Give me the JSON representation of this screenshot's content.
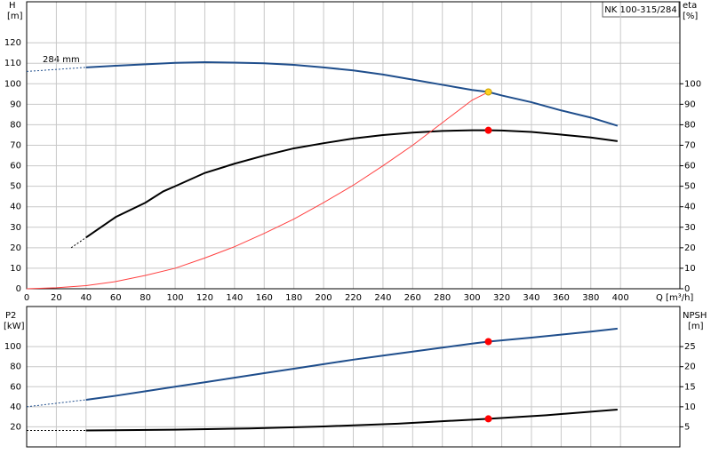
{
  "chart_data": [
    {
      "type": "line",
      "title": "NK 100-315/284",
      "xlabel": "Q [m³/h]",
      "ylabel": [
        "H",
        "[m]"
      ],
      "y2label": [
        "eta",
        "[%]"
      ],
      "annotation": "284 mm",
      "xlim": [
        0,
        440
      ],
      "xticks": [
        0,
        20,
        40,
        60,
        80,
        100,
        120,
        140,
        160,
        180,
        200,
        220,
        240,
        260,
        280,
        300,
        320,
        340,
        360,
        380,
        400
      ],
      "ylim": [
        0,
        140
      ],
      "yticks": [
        0,
        10,
        20,
        30,
        40,
        50,
        60,
        70,
        80,
        90,
        100,
        110,
        120
      ],
      "y2lim": [
        0,
        140
      ],
      "y2ticks": [
        0,
        10,
        20,
        30,
        40,
        50,
        60,
        70,
        80,
        90,
        100
      ],
      "grid": true,
      "series": [
        {
          "color": "#1f4e8c",
          "style": "dashed",
          "x": [
            0,
            40
          ],
          "values": [
            106,
            108
          ]
        },
        {
          "color": "#1f4e8c",
          "style": "solid",
          "x": [
            40,
            60,
            80,
            100,
            120,
            140,
            160,
            180,
            200,
            220,
            240,
            260,
            280,
            300,
            311,
            320,
            340,
            360,
            380,
            398
          ],
          "values": [
            108,
            108.8,
            109.5,
            110.2,
            110.5,
            110.3,
            110,
            109.2,
            108,
            106.5,
            104.5,
            102,
            99.5,
            97,
            96,
            94.3,
            91,
            87,
            83.5,
            79.5
          ]
        },
        {
          "color": "#000000",
          "style": "dashed",
          "axis": "y2",
          "x": [
            30,
            40
          ],
          "values": [
            20,
            25
          ]
        },
        {
          "color": "#000000",
          "style": "solid",
          "axis": "y2",
          "x": [
            40,
            60,
            80,
            92,
            100,
            120,
            140,
            160,
            180,
            200,
            220,
            240,
            260,
            280,
            300,
            311,
            320,
            340,
            360,
            380,
            398
          ],
          "values": [
            25,
            35,
            42,
            47.5,
            50,
            56.5,
            61,
            65,
            68.5,
            71,
            73.3,
            75,
            76.2,
            77,
            77.3,
            77.3,
            77.2,
            76.5,
            75.2,
            73.8,
            72
          ]
        },
        {
          "color": "#ff4040",
          "style": "thin",
          "x": [
            0,
            20,
            40,
            60,
            80,
            100,
            120,
            140,
            160,
            180,
            200,
            220,
            240,
            260,
            280,
            300,
            311
          ],
          "values": [
            0,
            0.5,
            1.5,
            3.5,
            6.5,
            10,
            15,
            20.5,
            27,
            34,
            42,
            50.5,
            60,
            70,
            81,
            92,
            96
          ]
        },
        {
          "color": "#ffd21f",
          "style": "marker",
          "x": [
            311
          ],
          "values": [
            96
          ]
        },
        {
          "color": "#ff0000",
          "style": "marker",
          "axis": "y2",
          "x": [
            311
          ],
          "values": [
            77.3
          ]
        }
      ]
    },
    {
      "type": "line",
      "ylabel": [
        "P2",
        "[kW]"
      ],
      "y2label": [
        "NPSH",
        "[m]"
      ],
      "xlim": [
        0,
        440
      ],
      "xticks": [
        0,
        20,
        40,
        60,
        80,
        100,
        120,
        140,
        160,
        180,
        200,
        220,
        240,
        260,
        280,
        300,
        320,
        340,
        360,
        380,
        400
      ],
      "ylim": [
        0,
        140
      ],
      "yticks": [
        20,
        40,
        60,
        80,
        100
      ],
      "y2lim": [
        0,
        35
      ],
      "y2ticks": [
        5,
        10,
        15,
        20,
        25
      ],
      "grid": true,
      "series": [
        {
          "color": "#1f4e8c",
          "style": "dashed",
          "x": [
            0,
            40
          ],
          "values": [
            40,
            47
          ]
        },
        {
          "color": "#1f4e8c",
          "style": "solid",
          "x": [
            40,
            60,
            80,
            100,
            120,
            140,
            160,
            180,
            200,
            220,
            240,
            260,
            280,
            300,
            311,
            340,
            360,
            380,
            398
          ],
          "values": [
            47,
            51,
            55.5,
            60,
            64.5,
            69,
            73.5,
            78,
            82.5,
            87,
            91,
            95,
            99,
            103,
            105,
            109,
            112,
            115,
            118
          ]
        },
        {
          "color": "#000000",
          "style": "dashed",
          "axis": "y2",
          "x": [
            0,
            40
          ],
          "values": [
            4.1,
            4.1
          ]
        },
        {
          "color": "#000000",
          "style": "solid",
          "axis": "y2",
          "x": [
            40,
            100,
            150,
            200,
            250,
            311,
            350,
            398
          ],
          "values": [
            4.1,
            4.3,
            4.6,
            5.1,
            5.8,
            7,
            7.9,
            9.3
          ]
        },
        {
          "color": "#ff0000",
          "style": "marker",
          "x": [
            311
          ],
          "values": [
            105
          ]
        },
        {
          "color": "#ff0000",
          "style": "marker",
          "axis": "y2",
          "x": [
            311
          ],
          "values": [
            7
          ]
        }
      ]
    }
  ]
}
